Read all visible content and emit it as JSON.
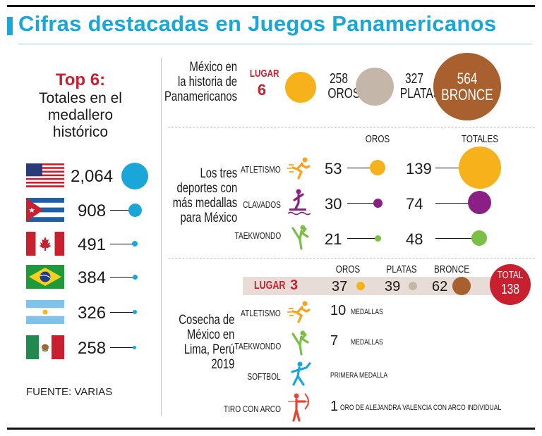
{
  "title": "Cifras destacadas en Juegos Panamericanos",
  "top6": {
    "heading": "Top 6:",
    "subtitle_lines": [
      "Totales en el",
      "medallero",
      "histórico"
    ],
    "countries": [
      {
        "flag": "usa-flag",
        "value": "2,064"
      },
      {
        "flag": "cuba-flag",
        "value": "908"
      },
      {
        "flag": "canada-flag",
        "value": "491"
      },
      {
        "flag": "brazil-flag",
        "value": "384"
      },
      {
        "flag": "argentina-flag",
        "value": "326"
      },
      {
        "flag": "mexico-flag",
        "value": "258"
      }
    ],
    "source": "FUENTE: VARIAS"
  },
  "history": {
    "label_lines": [
      "México en",
      "la historia de",
      "Panamericanos"
    ],
    "place_label": "LUGAR",
    "place_value": "6",
    "golds_value": "258",
    "golds_label": "OROS",
    "silvers_value": "327",
    "silvers_label": "PLATAS",
    "bronzes_value": "564",
    "bronzes_label": "BRONCE"
  },
  "sports": {
    "label_lines": [
      "Los tres",
      "deportes con",
      "más medallas",
      "para México"
    ],
    "col_golds": "OROS",
    "col_totals": "TOTALES",
    "rows": [
      {
        "name": "ATLETISMO",
        "golds": "53",
        "totals": "139"
      },
      {
        "name": "CLAVADOS",
        "golds": "30",
        "totals": "74"
      },
      {
        "name": "TAEKWONDO",
        "golds": "21",
        "totals": "48"
      }
    ]
  },
  "lima": {
    "label_lines": [
      "Cosecha de",
      "México en",
      "Lima, Perú",
      "2019"
    ],
    "col_golds": "OROS",
    "col_silvers": "PLATAS",
    "col_bronzes": "BRONCE",
    "place_label": "LUGAR",
    "place_value": "3",
    "golds": "37",
    "silvers": "39",
    "bronzes": "62",
    "total_label": "TOTAL",
    "total_value": "138",
    "rows": [
      {
        "name": "ATLETISMO",
        "count": "10",
        "detail": "MEDALLAS"
      },
      {
        "name": "TAEKWONDO",
        "count": "7",
        "detail": "MEDALLAS"
      },
      {
        "name": "SOFTBOL",
        "count": "",
        "detail": "PRIMERA MEDALLA"
      },
      {
        "name": "TIRO CON ARCO",
        "count": "1",
        "detail": "ORO DE ALEJANDRA VALENCIA CON ARCO INDIVIDUAL"
      }
    ]
  },
  "colors": {
    "accent_blue": "#1aa6d9",
    "gold": "#f7b21b",
    "silver": "#c4b7aa",
    "bronze": "#a8602f",
    "red": "#c8202f",
    "purple": "#8a1f86",
    "green": "#7bbf45"
  }
}
